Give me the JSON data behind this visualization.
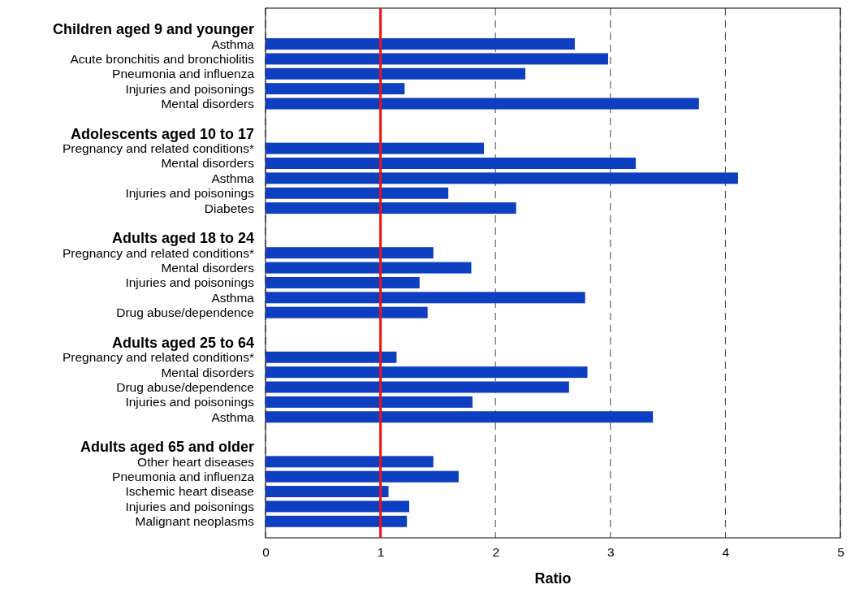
{
  "chart_data": {
    "type": "bar",
    "orientation": "horizontal",
    "xlabel": "Ratio",
    "categories": [
      "Children aged 9 and younger",
      "Asthma",
      "Acute bronchitis and bronchiolitis",
      "Pneumonia and influenza",
      "Injuries and poisonings",
      "Mental disorders",
      null,
      "Adolescents aged 10 to 17",
      "Pregnancy and related conditions*",
      "Mental disorders",
      "Asthma",
      "Injuries and poisonings",
      "Diabetes",
      null,
      "Adults aged 18 to 24",
      "Pregnancy and related conditions*",
      "Mental disorders",
      "Injuries and poisonings",
      "Asthma",
      "Drug abuse/dependence",
      null,
      "Adults aged 25 to 64",
      "Pregnancy and related conditions*",
      "Mental disorders",
      "Drug abuse/dependence",
      "Injuries and poisonings",
      "Asthma",
      null,
      "Adults aged 65 and older",
      "Other heart diseases",
      "Pneumonia and influenza",
      "Ischemic heart disease",
      "Injuries and poisonings",
      "Malignant neoplasms"
    ],
    "values": [
      null,
      2.69,
      2.98,
      2.26,
      1.21,
      3.77,
      null,
      null,
      1.9,
      3.22,
      4.11,
      1.59,
      2.18,
      null,
      null,
      1.46,
      1.79,
      1.34,
      2.78,
      1.41,
      null,
      null,
      1.14,
      2.8,
      2.64,
      1.8,
      3.37,
      null,
      null,
      1.46,
      1.68,
      1.07,
      1.25,
      1.23
    ],
    "color": "#0f3fc1",
    "xlim": [
      0,
      5
    ],
    "xticks": [
      0,
      1,
      2,
      3,
      4,
      5
    ],
    "grid": "x",
    "ref_lines": [
      {
        "axis": "x",
        "value": 1,
        "color": "#ee1111"
      }
    ]
  }
}
